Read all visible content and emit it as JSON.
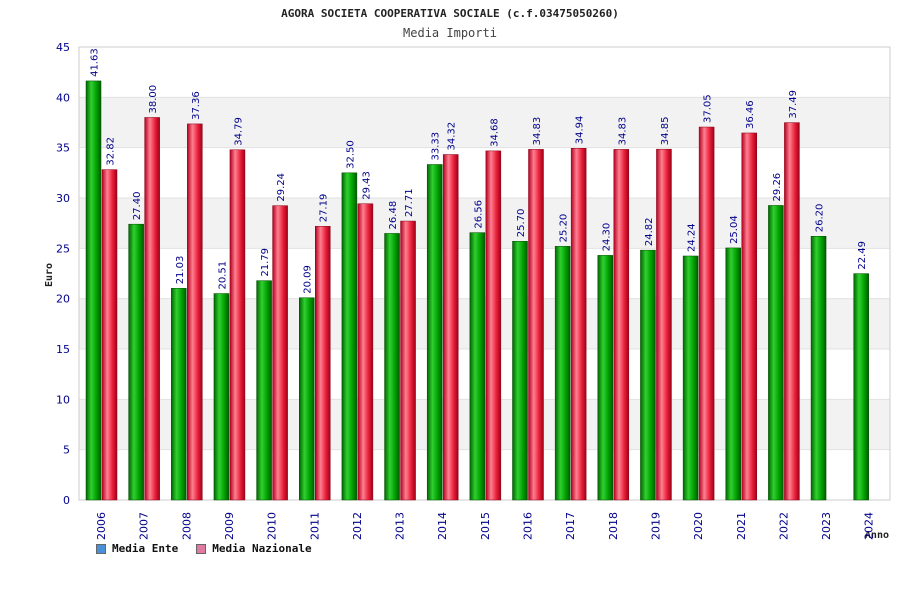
{
  "colors": {
    "ente": "#00a000",
    "nazionale": "#e8203a",
    "band": "#f2f2f2",
    "axis_text": "#00008b"
  },
  "chart_data": {
    "type": "bar",
    "title": "AGORA SOCIETA COOPERATIVA SOCIALE (c.f.03475050260)",
    "subtitle": "Media Importi",
    "xlabel": "Anno",
    "ylabel": "Euro",
    "ylim": [
      0,
      45
    ],
    "yticks": [
      0,
      5,
      10,
      15,
      20,
      25,
      30,
      35,
      40,
      45
    ],
    "categories": [
      "2006",
      "2007",
      "2008",
      "2009",
      "2010",
      "2011",
      "2012",
      "2013",
      "2014",
      "2015",
      "2016",
      "2017",
      "2018",
      "2019",
      "2020",
      "2021",
      "2022",
      "2023",
      "2024"
    ],
    "series": [
      {
        "name": "Media Ente",
        "color": "#00a000",
        "values": [
          41.63,
          27.4,
          21.03,
          20.51,
          21.79,
          20.09,
          32.5,
          26.48,
          33.33,
          26.56,
          25.7,
          25.2,
          24.3,
          24.82,
          24.24,
          25.04,
          29.26,
          26.2,
          22.49
        ],
        "labels": [
          "41.63",
          "27.40",
          "21.03",
          "20.51",
          "21.79",
          "20.09",
          "32.50",
          "26.48",
          "33.33",
          "26.56",
          "25.70",
          "25.20",
          "24.30",
          "24.82",
          "24.24",
          "25.04",
          "29.26",
          "26.20",
          "22.49"
        ]
      },
      {
        "name": "Media Nazionale",
        "color": "#e8203a",
        "values": [
          32.82,
          38.0,
          37.36,
          34.79,
          29.24,
          27.19,
          29.43,
          27.71,
          34.32,
          34.68,
          34.83,
          34.94,
          34.83,
          34.85,
          37.05,
          36.46,
          37.49,
          null,
          null
        ],
        "labels": [
          "32.82",
          "38.00",
          "37.36",
          "34.79",
          "29.24",
          "27.19",
          "29.43",
          "27.71",
          "34.32",
          "34.68",
          "34.83",
          "34.94",
          "34.83",
          "34.85",
          "37.05",
          "36.46",
          "37.49",
          null,
          null
        ]
      }
    ],
    "legend": {
      "position": "bottom-left",
      "items": [
        {
          "label": "Media Ente",
          "color": "#4a90d9"
        },
        {
          "label": "Media Nazionale",
          "color": "#e07aa0"
        }
      ]
    }
  }
}
